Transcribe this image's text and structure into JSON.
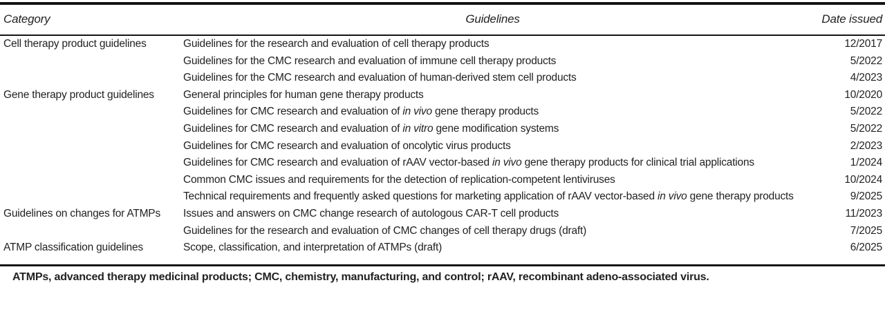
{
  "colors": {
    "text": "#222222",
    "rule": "#141414",
    "background": "#ffffff"
  },
  "table": {
    "header": {
      "category": "Category",
      "guidelines": "Guidelines",
      "date_issued": "Date issued"
    },
    "rows": [
      {
        "category": "Cell therapy product guidelines",
        "guideline": [
          {
            "text": "Guidelines for the research and evaluation of cell therapy products"
          }
        ],
        "date": "12/2017"
      },
      {
        "category": "",
        "guideline": [
          {
            "text": "Guidelines for the CMC research and evaluation of immune cell therapy products"
          }
        ],
        "date": "5/2022"
      },
      {
        "category": "",
        "guideline": [
          {
            "text": "Guidelines for the CMC research and evaluation of human-derived stem cell products"
          }
        ],
        "date": "4/2023"
      },
      {
        "category": "Gene therapy product guidelines",
        "guideline": [
          {
            "text": "General principles for human gene therapy products"
          }
        ],
        "date": "10/2020"
      },
      {
        "category": "",
        "guideline": [
          {
            "text": "Guidelines for CMC research and evaluation of "
          },
          {
            "text": "in vivo",
            "italic": true
          },
          {
            "text": " gene therapy products"
          }
        ],
        "date": "5/2022"
      },
      {
        "category": "",
        "guideline": [
          {
            "text": "Guidelines for CMC research and evaluation of "
          },
          {
            "text": "in vitro",
            "italic": true
          },
          {
            "text": " gene modification systems"
          }
        ],
        "date": "5/2022"
      },
      {
        "category": "",
        "guideline": [
          {
            "text": "Guidelines for CMC research and evaluation of oncolytic virus products"
          }
        ],
        "date": "2/2023"
      },
      {
        "category": "",
        "guideline": [
          {
            "text": "Guidelines for CMC research and evaluation of rAAV vector-based "
          },
          {
            "text": "in vivo",
            "italic": true
          },
          {
            "text": " gene therapy products for clinical trial applications"
          }
        ],
        "date": "1/2024"
      },
      {
        "category": "",
        "guideline": [
          {
            "text": "Common CMC issues and requirements for the detection of replication-competent lentiviruses"
          }
        ],
        "date": "10/2024"
      },
      {
        "category": "",
        "guideline": [
          {
            "text": "Technical requirements and frequently asked questions for marketing application of rAAV vector-based "
          },
          {
            "text": "in vivo",
            "italic": true
          },
          {
            "text": " gene therapy products"
          }
        ],
        "date": "9/2025"
      },
      {
        "category": "Guidelines on changes for ATMPs",
        "guideline": [
          {
            "text": "Issues and answers on CMC change research of autologous CAR-T cell products"
          }
        ],
        "date": "11/2023"
      },
      {
        "category": "",
        "guideline": [
          {
            "text": "Guidelines for the research and evaluation of CMC changes of cell therapy drugs (draft)"
          }
        ],
        "date": "7/2025"
      },
      {
        "category": "ATMP classification guidelines",
        "guideline": [
          {
            "text": "Scope, classification, and interpretation of ATMPs (draft)"
          }
        ],
        "date": "6/2025"
      }
    ]
  },
  "footnote": "ATMPs, advanced therapy medicinal products; CMC, chemistry, manufacturing, and control; rAAV, recombinant adeno-associated virus."
}
